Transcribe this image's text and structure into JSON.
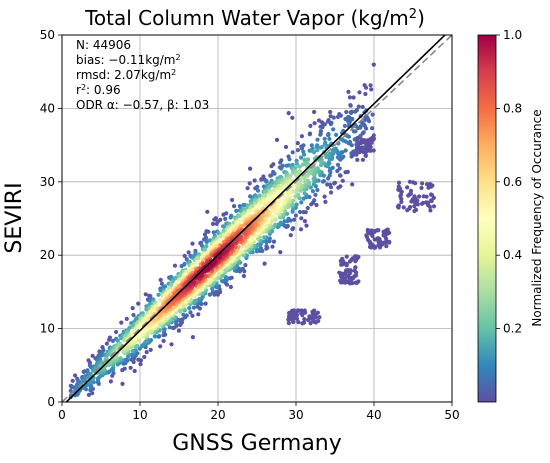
{
  "chart_data": {
    "type": "scatter",
    "title_prefix": "Total Column Water Vapor (kg/m",
    "title_sup": "2",
    "title_suffix": ")",
    "xlabel": "GNSS Germany",
    "ylabel": "SEVIRI",
    "xlim": [
      0,
      50
    ],
    "ylim": [
      0,
      50
    ],
    "xticks": [
      "0",
      "10",
      "20",
      "30",
      "40",
      "50"
    ],
    "yticks": [
      "0",
      "10",
      "20",
      "30",
      "40",
      "50"
    ],
    "grid": true,
    "stats": {
      "n": "N: 44906",
      "bias_prefix": "bias: −0.11kg/m",
      "bias_sup": "2",
      "rmsd_prefix": "rmsd: 2.07kg/m",
      "rmsd_sup": "2",
      "r2_base": "r",
      "r2_sup": "2",
      "r2_value": ": 0.96",
      "odr": "ODR α: −0.57, β: 1.03"
    },
    "reference_lines": [
      {
        "name": "one-to-one",
        "slope": 1.0,
        "intercept": 0.0,
        "style": "dashed",
        "color": "#888888"
      },
      {
        "name": "odr-fit",
        "slope": 1.03,
        "intercept": -0.57,
        "style": "solid",
        "color": "#000000"
      }
    ],
    "main_band": {
      "x_range": [
        1,
        40
      ],
      "center_model": "y = x * 1.0 - 0.3",
      "spread_sd": 2.07,
      "density_peak_x": 19
    },
    "outlier_clusters": [
      {
        "x": [
          37.8,
          40.0
        ],
        "y": [
          34.0,
          36.0
        ]
      },
      {
        "x": [
          35.5,
          38.0
        ],
        "y": [
          16.0,
          20.0
        ]
      },
      {
        "x": [
          39.0,
          42.0
        ],
        "y": [
          21.0,
          23.5
        ]
      },
      {
        "x": [
          29.0,
          33.0
        ],
        "y": [
          10.5,
          12.5
        ]
      },
      {
        "x": [
          43.0,
          48.0
        ],
        "y": [
          26.0,
          30.0
        ]
      }
    ],
    "colorbar": {
      "label": "Normalized Frequency of Occurance",
      "range": [
        0,
        1
      ],
      "ticks": [
        "0.2",
        "0.4",
        "0.6",
        "0.8",
        "1.0"
      ],
      "tick_values": [
        0.2,
        0.4,
        0.6,
        0.8,
        1.0
      ],
      "colormap": "Spectral_r",
      "stops": [
        "#5e4fa2",
        "#3288bd",
        "#66c2a5",
        "#abdda4",
        "#e6f598",
        "#ffffbf",
        "#fee08b",
        "#fdae61",
        "#f46d43",
        "#d53e4f",
        "#9e0142"
      ]
    }
  }
}
